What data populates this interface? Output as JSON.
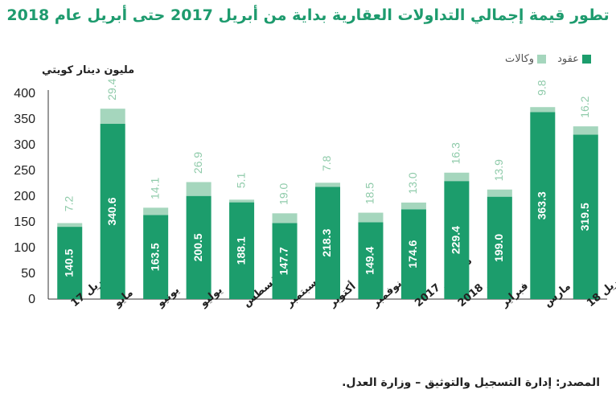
{
  "title": "تطور قيمة إجمالي التداولات العقارية بداية من أبريل 2017 حتى أبريل عام  2018",
  "source": "المصدر: إدارة التسجيل والتوثيق – وزارة العدل.",
  "colors": {
    "contracts": "#1c9d6c",
    "agencies": "#a5d6bd",
    "title": "#1e9b6e"
  },
  "chart_data": {
    "type": "bar",
    "stacked": true,
    "ylabel": "مليون دينار كويتي",
    "ylim": [
      0,
      400
    ],
    "yticks": [
      0,
      50,
      100,
      150,
      200,
      250,
      300,
      350,
      400
    ],
    "legend_position": "top-right",
    "categories": [
      "أبريل 17",
      "مايو",
      "يونيو",
      "يوليو",
      "أغسطس",
      "سبتمبر",
      "أكتوبر",
      "نوفمبر",
      "ديسمبر 2017",
      "يناير 2018",
      "فبراير",
      "مارس",
      "أبريل 18"
    ],
    "series": [
      {
        "name": "عقود",
        "values": [
          140.5,
          340.6,
          163.5,
          200.5,
          188.1,
          147.7,
          218.3,
          149.4,
          174.6,
          229.4,
          199.0,
          363.3,
          319.5
        ]
      },
      {
        "name": "وكالات",
        "values": [
          7.2,
          29.4,
          14.1,
          26.9,
          5.1,
          19.0,
          7.8,
          18.5,
          13.0,
          16.3,
          13.9,
          9.8,
          16.2
        ]
      }
    ]
  }
}
